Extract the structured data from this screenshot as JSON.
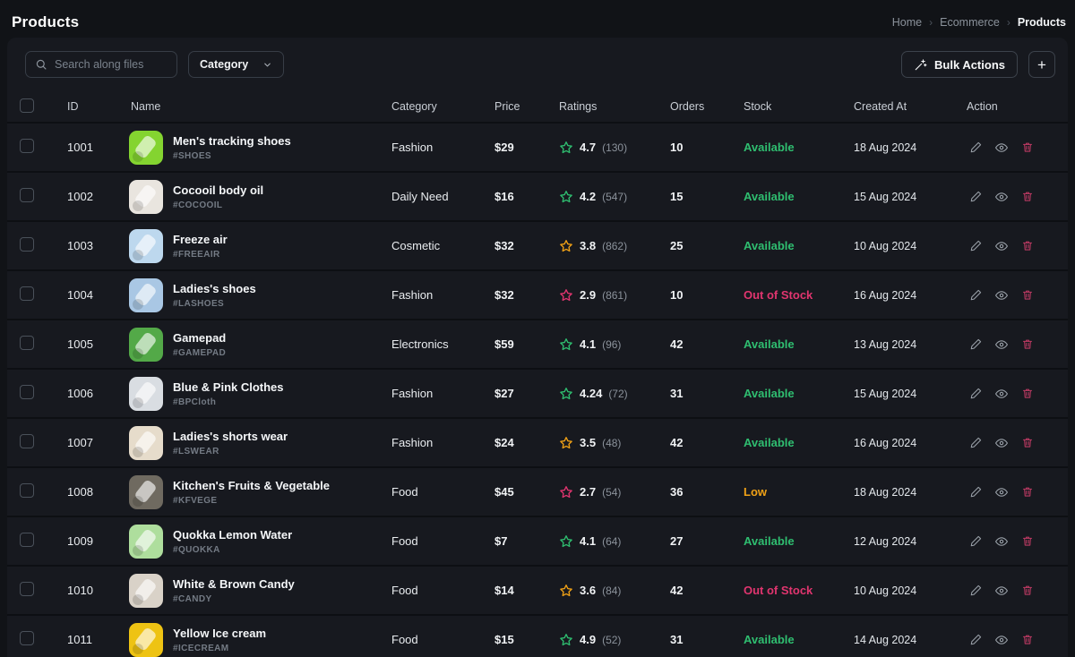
{
  "page": {
    "title": "Products"
  },
  "breadcrumb": {
    "items": [
      "Home",
      "Ecommerce",
      "Products"
    ],
    "separator": "›"
  },
  "toolbar": {
    "search_placeholder": "Search along files",
    "category_label": "Category",
    "bulk_actions_label": "Bulk Actions",
    "add_label": "+"
  },
  "icons": [
    "search-icon",
    "chevron-down-icon",
    "wand-icon",
    "plus-icon",
    "star-icon",
    "pencil-icon",
    "eye-icon",
    "trash-icon",
    "checkbox"
  ],
  "colors": {
    "rating_green": "#2fbe70",
    "rating_orange": "#f0a116",
    "rating_pink": "#e1356f",
    "stock_available": "#2fbe70",
    "stock_low": "#f0a116",
    "stock_out": "#e1356f",
    "delete_icon": "#bd3a63"
  },
  "table": {
    "headers": [
      "ID",
      "Name",
      "Category",
      "Price",
      "Ratings",
      "Orders",
      "Stock",
      "Created At",
      "Action"
    ],
    "rows": [
      {
        "id": "1001",
        "name": "Men's tracking shoes",
        "tag": "#SHOES",
        "category": "Fashion",
        "price": "$29",
        "rating": "4.7",
        "rating_count": "(130)",
        "rating_color": "#2fbe70",
        "orders": "10",
        "stock": "Available",
        "stock_color": "#2fbe70",
        "created": "18 Aug 2024",
        "thumb_color": "#84d430"
      },
      {
        "id": "1002",
        "name": "Cocooil body oil",
        "tag": "#COCOOIL",
        "category": "Daily Need",
        "price": "$16",
        "rating": "4.2",
        "rating_count": "(547)",
        "rating_color": "#2fbe70",
        "orders": "15",
        "stock": "Available",
        "stock_color": "#2fbe70",
        "created": "15 Aug 2024",
        "thumb_color": "#e9e5df"
      },
      {
        "id": "1003",
        "name": "Freeze air",
        "tag": "#FREEAIR",
        "category": "Cosmetic",
        "price": "$32",
        "rating": "3.8",
        "rating_count": "(862)",
        "rating_color": "#f0a116",
        "orders": "25",
        "stock": "Available",
        "stock_color": "#2fbe70",
        "created": "10 Aug 2024",
        "thumb_color": "#bdd8ee"
      },
      {
        "id": "1004",
        "name": "Ladies's shoes",
        "tag": "#LASHOES",
        "category": "Fashion",
        "price": "$32",
        "rating": "2.9",
        "rating_count": "(861)",
        "rating_color": "#e1356f",
        "orders": "10",
        "stock": "Out of Stock",
        "stock_color": "#e1356f",
        "created": "16 Aug 2024",
        "thumb_color": "#a9c7e4"
      },
      {
        "id": "1005",
        "name": "Gamepad",
        "tag": "#GAMEPAD",
        "category": "Electronics",
        "price": "$59",
        "rating": "4.1",
        "rating_count": "(96)",
        "rating_color": "#2fbe70",
        "orders": "42",
        "stock": "Available",
        "stock_color": "#2fbe70",
        "created": "13 Aug 2024",
        "thumb_color": "#53a948"
      },
      {
        "id": "1006",
        "name": "Blue & Pink Clothes",
        "tag": "#BPCloth",
        "category": "Fashion",
        "price": "$27",
        "rating": "4.24",
        "rating_count": "(72)",
        "rating_color": "#2fbe70",
        "orders": "31",
        "stock": "Available",
        "stock_color": "#2fbe70",
        "created": "15 Aug 2024",
        "thumb_color": "#d9dde2"
      },
      {
        "id": "1007",
        "name": "Ladies's shorts wear",
        "tag": "#LSWEAR",
        "category": "Fashion",
        "price": "$24",
        "rating": "3.5",
        "rating_count": "(48)",
        "rating_color": "#f0a116",
        "orders": "42",
        "stock": "Available",
        "stock_color": "#2fbe70",
        "created": "16 Aug 2024",
        "thumb_color": "#e6dccb"
      },
      {
        "id": "1008",
        "name": "Kitchen's Fruits & Vegetable",
        "tag": "#KFVEGE",
        "category": "Food",
        "price": "$45",
        "rating": "2.7",
        "rating_count": "(54)",
        "rating_color": "#e1356f",
        "orders": "36",
        "stock": "Low",
        "stock_color": "#f0a116",
        "created": "18 Aug 2024",
        "thumb_color": "#6f6a60"
      },
      {
        "id": "1009",
        "name": "Quokka Lemon Water",
        "tag": "#QUOKKA",
        "category": "Food",
        "price": "$7",
        "rating": "4.1",
        "rating_count": "(64)",
        "rating_color": "#2fbe70",
        "orders": "27",
        "stock": "Available",
        "stock_color": "#2fbe70",
        "created": "12 Aug 2024",
        "thumb_color": "#aede9d"
      },
      {
        "id": "1010",
        "name": "White & Brown Candy",
        "tag": "#CANDY",
        "category": "Food",
        "price": "$14",
        "rating": "3.6",
        "rating_count": "(84)",
        "rating_color": "#f0a116",
        "orders": "42",
        "stock": "Out of Stock",
        "stock_color": "#e1356f",
        "created": "10 Aug 2024",
        "thumb_color": "#d9d2c8"
      },
      {
        "id": "1011",
        "name": "Yellow Ice cream",
        "tag": "#ICECREAM",
        "category": "Food",
        "price": "$15",
        "rating": "4.9",
        "rating_count": "(52)",
        "rating_color": "#2fbe70",
        "orders": "31",
        "stock": "Available",
        "stock_color": "#2fbe70",
        "created": "14 Aug 2024",
        "thumb_color": "#eec313"
      }
    ]
  }
}
